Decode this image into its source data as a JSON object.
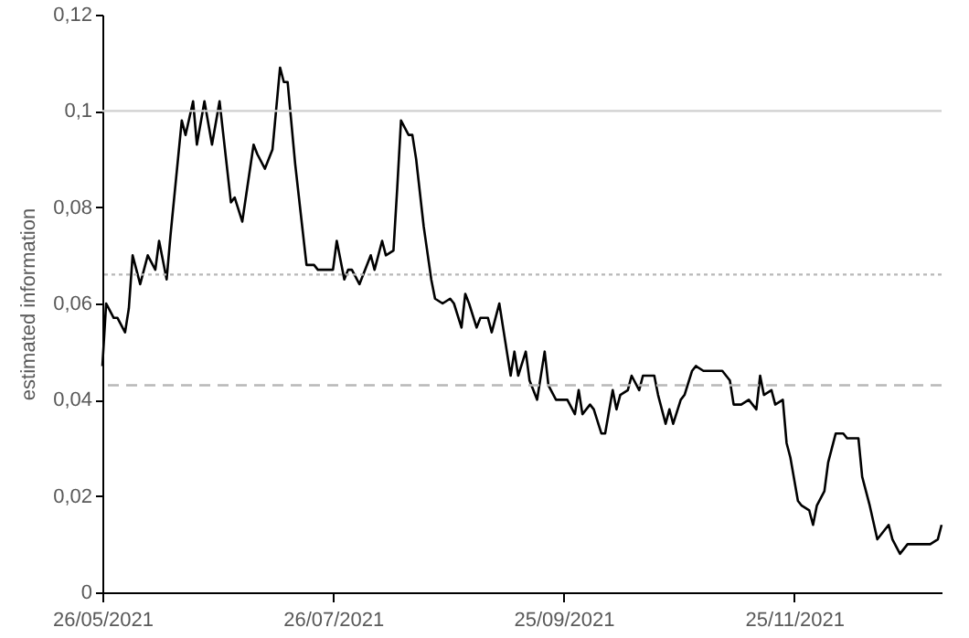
{
  "chart_data": {
    "type": "line",
    "ylabel": "estimated information",
    "x": [
      "2021-05-26",
      "2021-05-27",
      "2021-05-29",
      "2021-05-30",
      "2021-06-01",
      "2021-06-02",
      "2021-06-03",
      "2021-06-05",
      "2021-06-07",
      "2021-06-09",
      "2021-06-10",
      "2021-06-12",
      "2021-06-13",
      "2021-06-16",
      "2021-06-17",
      "2021-06-19",
      "2021-06-20",
      "2021-06-22",
      "2021-06-24",
      "2021-06-26",
      "2021-06-29",
      "2021-06-30",
      "2021-07-02",
      "2021-07-05",
      "2021-07-06",
      "2021-07-08",
      "2021-07-10",
      "2021-07-12",
      "2021-07-13",
      "2021-07-14",
      "2021-07-16",
      "2021-07-18",
      "2021-07-19",
      "2021-07-21",
      "2021-07-22",
      "2021-07-26",
      "2021-07-27",
      "2021-07-29",
      "2021-07-30",
      "2021-07-31",
      "2021-08-02",
      "2021-08-05",
      "2021-08-06",
      "2021-08-08",
      "2021-08-09",
      "2021-08-11",
      "2021-08-12",
      "2021-08-13",
      "2021-08-15",
      "2021-08-16",
      "2021-08-17",
      "2021-08-19",
      "2021-08-21",
      "2021-08-22",
      "2021-08-24",
      "2021-08-26",
      "2021-08-27",
      "2021-08-29",
      "2021-08-30",
      "2021-08-31",
      "2021-09-02",
      "2021-09-03",
      "2021-09-05",
      "2021-09-06",
      "2021-09-08",
      "2021-09-09",
      "2021-09-11",
      "2021-09-12",
      "2021-09-13",
      "2021-09-15",
      "2021-09-16",
      "2021-09-18",
      "2021-09-20",
      "2021-09-21",
      "2021-09-23",
      "2021-09-26",
      "2021-09-28",
      "2021-09-29",
      "2021-09-30",
      "2021-10-02",
      "2021-10-03",
      "2021-10-05",
      "2021-10-06",
      "2021-10-08",
      "2021-10-09",
      "2021-10-10",
      "2021-10-12",
      "2021-10-13",
      "2021-10-15",
      "2021-10-16",
      "2021-10-19",
      "2021-10-20",
      "2021-10-22",
      "2021-10-23",
      "2021-10-24",
      "2021-10-26",
      "2021-10-27",
      "2021-10-29",
      "2021-10-30",
      "2021-11-01",
      "2021-11-06",
      "2021-11-08",
      "2021-11-09",
      "2021-11-11",
      "2021-11-13",
      "2021-11-15",
      "2021-11-16",
      "2021-11-17",
      "2021-11-19",
      "2021-11-20",
      "2021-11-22",
      "2021-11-23",
      "2021-11-24",
      "2021-11-26",
      "2021-11-27",
      "2021-11-29",
      "2021-11-30",
      "2021-12-01",
      "2021-12-03",
      "2021-12-04",
      "2021-12-06",
      "2021-12-08",
      "2021-12-09",
      "2021-12-12",
      "2021-12-13",
      "2021-12-15",
      "2021-12-17",
      "2021-12-19",
      "2021-12-20",
      "2021-12-21",
      "2021-12-23",
      "2021-12-25",
      "2021-12-31",
      "2022-01-02",
      "2022-01-03"
    ],
    "series": [
      {
        "color": "#000000",
        "values": [
          0.047,
          0.06,
          0.057,
          0.057,
          0.054,
          0.059,
          0.07,
          0.064,
          0.07,
          0.067,
          0.073,
          0.065,
          0.074,
          0.098,
          0.095,
          0.102,
          0.093,
          0.102,
          0.093,
          0.102,
          0.081,
          0.082,
          0.077,
          0.093,
          0.091,
          0.088,
          0.092,
          0.109,
          0.106,
          0.106,
          0.089,
          0.075,
          0.068,
          0.068,
          0.067,
          0.067,
          0.073,
          0.065,
          0.067,
          0.067,
          0.064,
          0.07,
          0.067,
          0.073,
          0.07,
          0.071,
          0.084,
          0.098,
          0.095,
          0.095,
          0.09,
          0.076,
          0.065,
          0.061,
          0.06,
          0.061,
          0.06,
          0.055,
          0.062,
          0.06,
          0.055,
          0.057,
          0.057,
          0.054,
          0.06,
          0.055,
          0.045,
          0.05,
          0.045,
          0.05,
          0.044,
          0.04,
          0.05,
          0.043,
          0.04,
          0.04,
          0.037,
          0.042,
          0.037,
          0.039,
          0.038,
          0.033,
          0.033,
          0.042,
          0.038,
          0.041,
          0.042,
          0.045,
          0.042,
          0.045,
          0.045,
          0.041,
          0.035,
          0.038,
          0.035,
          0.04,
          0.041,
          0.046,
          0.047,
          0.046,
          0.046,
          0.044,
          0.039,
          0.039,
          0.04,
          0.038,
          0.045,
          0.041,
          0.042,
          0.039,
          0.04,
          0.031,
          0.028,
          0.019,
          0.018,
          0.017,
          0.014,
          0.018,
          0.021,
          0.027,
          0.033,
          0.033,
          0.032,
          0.032,
          0.024,
          0.018,
          0.011,
          0.013,
          0.014,
          0.011,
          0.008,
          0.01,
          0.01,
          0.011,
          0.014
        ]
      }
    ],
    "xlim": [
      "2021-05-26",
      "2022-01-03"
    ],
    "xticks": [
      {
        "value": "2021-05-26",
        "label": "26/05/2021"
      },
      {
        "value": "2021-07-26",
        "label": "26/07/2021"
      },
      {
        "value": "2021-09-25",
        "label": "25/09/2021"
      },
      {
        "value": "2021-11-25",
        "label": "25/11/2021"
      }
    ],
    "ylim": [
      0,
      0.12
    ],
    "yticks": [
      0,
      {
        "value": 0.02,
        "label": "0,02"
      },
      {
        "value": 0.04,
        "label": "0,04"
      },
      {
        "value": 0.06,
        "label": "0,06"
      },
      {
        "value": 0.08,
        "label": "0,08"
      },
      {
        "value": 0.1,
        "label": "0,1"
      },
      {
        "value": 0.12,
        "label": "0,12"
      }
    ],
    "ref_lines": [
      {
        "axis": "y",
        "value": 0.1,
        "color": "#d0d0d0",
        "line_style": "solid"
      },
      {
        "axis": "y",
        "value": 0.066,
        "color": "#b8b8b8",
        "line_style": "dotted"
      },
      {
        "axis": "y",
        "value": 0.043,
        "color": "#b8b8b8",
        "line_style": "dashed"
      }
    ],
    "marker": "none",
    "line_style": "solid"
  }
}
